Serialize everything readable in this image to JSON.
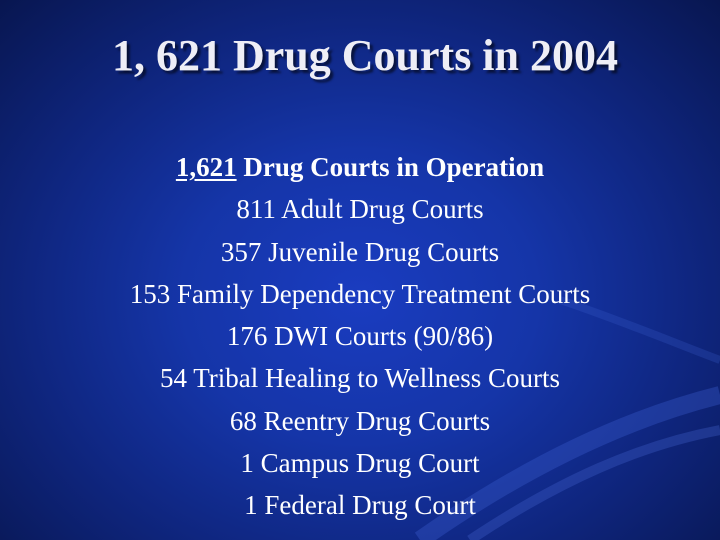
{
  "slide": {
    "title": "1, 621 Drug Courts in 2004",
    "heading": {
      "number": "1,621",
      "rest": " Drug Courts in Operation"
    },
    "items": [
      "811 Adult Drug Courts",
      "357 Juvenile Drug Courts",
      "153 Family Dependency Treatment Courts",
      "176 DWI Courts (90/86)",
      "54 Tribal Healing to Wellness Courts",
      "68 Reentry Drug Courts",
      "1 Campus Drug Court",
      "1 Federal Drug Court"
    ]
  },
  "colors": {
    "background": "#1535a8",
    "text": "#ffffff",
    "swoosh": "#3d5fd0"
  }
}
